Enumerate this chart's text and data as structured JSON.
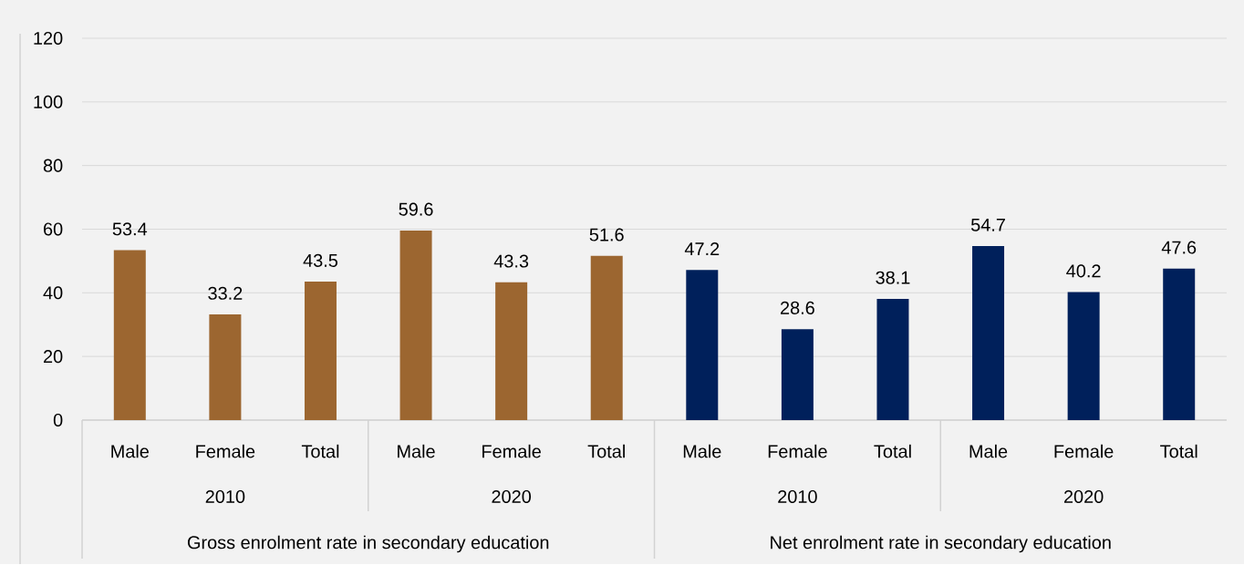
{
  "chart_data": {
    "type": "bar",
    "categories": [
      "Male",
      "Female",
      "Total",
      "Male",
      "Female",
      "Total",
      "Male",
      "Female",
      "Total",
      "Male",
      "Female",
      "Total"
    ],
    "values": [
      53.4,
      33.2,
      43.5,
      59.6,
      43.3,
      51.6,
      47.2,
      28.6,
      38.1,
      54.7,
      40.2,
      47.6
    ],
    "colors": [
      "#9c6630",
      "#9c6630",
      "#9c6630",
      "#9c6630",
      "#9c6630",
      "#9c6630",
      "#00205b",
      "#00205b",
      "#00205b",
      "#00205b",
      "#00205b",
      "#00205b"
    ],
    "annotations": [
      "2010",
      "2020",
      "2010",
      "2020",
      "Gross enrolment rate in secondary education",
      "Net enrolment rate in secondary education"
    ],
    "ylim": [
      0,
      120
    ],
    "yticks": [
      0,
      20,
      40,
      60,
      80,
      100,
      120
    ],
    "grid": "y",
    "data_labels": true
  }
}
